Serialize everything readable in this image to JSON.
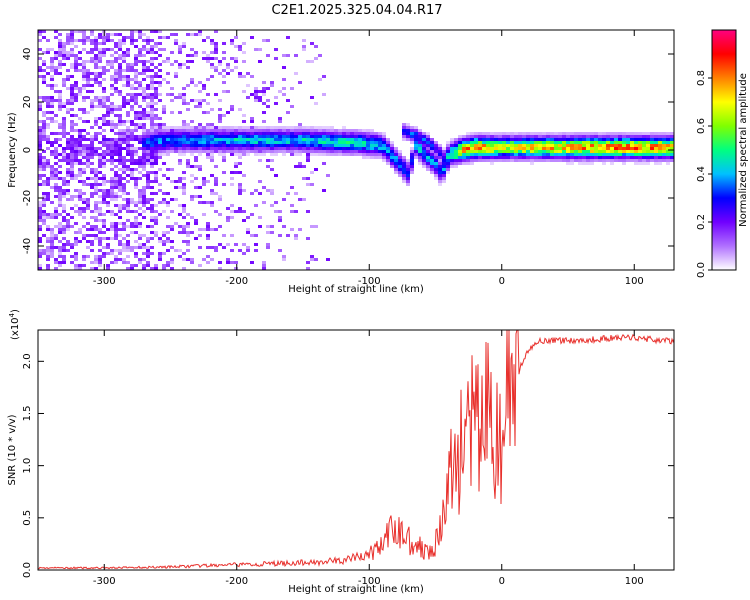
{
  "figure_title": "C2E1.2025.325.04.04.R17",
  "chart_data": [
    {
      "type": "heatmap",
      "xlabel": "Height of straight line (km)",
      "ylabel": "Frequency (Hz)",
      "xlim": [
        -350,
        130
      ],
      "ylim": [
        -50,
        50
      ],
      "xticks": [
        -300,
        -200,
        -100,
        0,
        100
      ],
      "yticks": [
        -40,
        -20,
        0,
        20,
        40
      ],
      "colorbar": {
        "label": "Normalized spectral amplitude",
        "range": [
          0,
          1
        ],
        "ticks": [
          "0.0",
          "0.2",
          "0.4",
          "0.6",
          "0.8"
        ],
        "colors": [
          "#ffffff",
          "#b070ff",
          "#7000ff",
          "#0000ff",
          "#00c0ff",
          "#00ff80",
          "#80ff00",
          "#ffff00",
          "#ff8000",
          "#ff0000",
          "#ff0080"
        ]
      },
      "ridge": {
        "heights": [
          -270,
          -250,
          -200,
          -150,
          -110,
          -90,
          -80,
          -70,
          -65,
          -50,
          -45,
          -40,
          -30,
          -20,
          0,
          50,
          100,
          130
        ],
        "frequency": [
          3,
          4,
          4,
          4,
          3,
          2,
          -4,
          -10,
          2,
          -6,
          -10,
          -2,
          0,
          1,
          1,
          1,
          1,
          1
        ],
        "amplitude": [
          0.35,
          0.4,
          0.45,
          0.45,
          0.5,
          0.45,
          0.4,
          0.35,
          0.45,
          0.4,
          0.35,
          0.5,
          0.8,
          0.85,
          0.7,
          0.8,
          0.85,
          0.8
        ]
      },
      "secondary_branch": {
        "heights": [
          -75,
          -65,
          -55,
          -45,
          -40
        ],
        "frequency": [
          8,
          6,
          3,
          -2,
          -6
        ]
      }
    },
    {
      "type": "line",
      "xlabel": "Height of straight line (km)",
      "ylabel": "SNR (10 * v/v)",
      "scale_note": "(x10",
      "scale_exp": "4",
      "xlim": [
        -350,
        130
      ],
      "ylim": [
        0,
        23000
      ],
      "xticks": [
        -300,
        -200,
        -100,
        0,
        100
      ],
      "yticks": [
        "0.0",
        "0.5",
        "1.0",
        "1.5",
        "2.0"
      ],
      "ytick_values": [
        0,
        5000,
        10000,
        15000,
        20000
      ],
      "color": "#e8302c",
      "x": [
        -350,
        -300,
        -250,
        -200,
        -150,
        -120,
        -100,
        -90,
        -80,
        -70,
        -60,
        -50,
        -45,
        -40,
        -35,
        -30,
        -25,
        -20,
        -15,
        -10,
        -5,
        0,
        5,
        10,
        15,
        20,
        25,
        30,
        40,
        60,
        80,
        100,
        120,
        130
      ],
      "y": [
        200,
        200,
        300,
        500,
        700,
        900,
        1500,
        2500,
        4000,
        3000,
        2000,
        2500,
        4000,
        9000,
        10000,
        12000,
        14000,
        13000,
        14500,
        15000,
        13000,
        11000,
        17000,
        18500,
        19500,
        21000,
        21800,
        22000,
        22000,
        22000,
        22200,
        22300,
        22000,
        21900
      ]
    }
  ]
}
